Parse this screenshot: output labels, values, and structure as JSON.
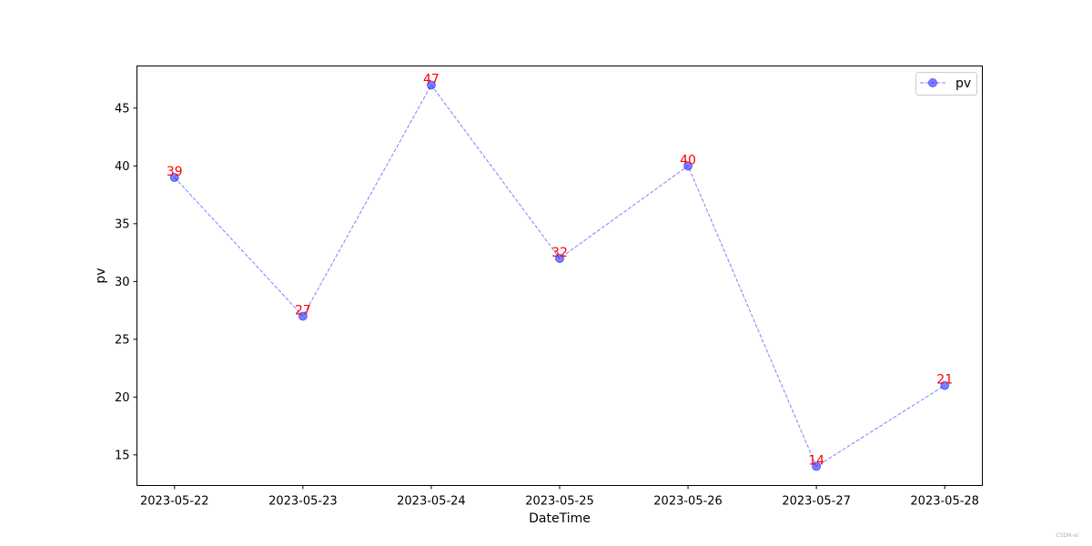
{
  "chart_data": {
    "type": "line",
    "x": [
      "2023-05-22",
      "2023-05-23",
      "2023-05-24",
      "2023-05-25",
      "2023-05-26",
      "2023-05-27",
      "2023-05-28"
    ],
    "series": [
      {
        "name": "pv",
        "values": [
          39,
          27,
          47,
          32,
          40,
          14,
          21
        ],
        "color": "#0000ff",
        "line_style": "dashed",
        "marker": "circle",
        "alpha": 0.5
      }
    ],
    "data_label_color": "#ff0000",
    "xlabel": "DateTime",
    "ylabel": "pv",
    "ylim": [
      12.35,
      48.65
    ],
    "yticks": [
      15,
      20,
      25,
      30,
      35,
      40,
      45
    ],
    "grid": false,
    "legend_position": "upper-right"
  },
  "watermark": "CSDN-ai"
}
